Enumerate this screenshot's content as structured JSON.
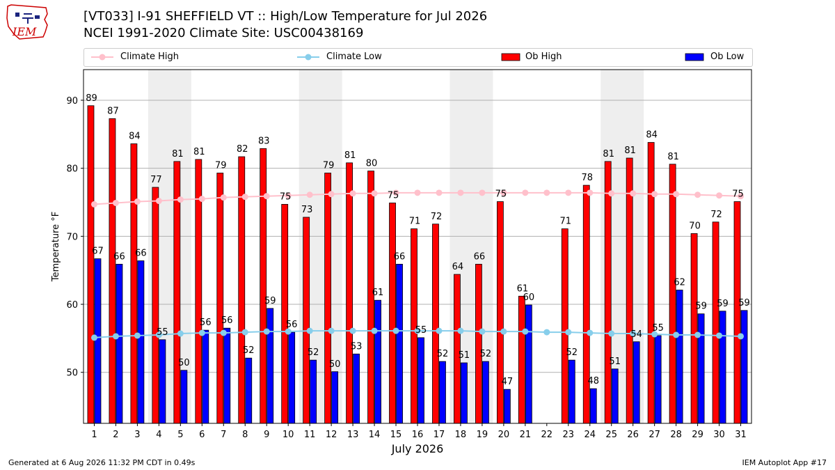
{
  "header": {
    "logo_text": "IEM",
    "title_line1": "[VT033] I-91 SHEFFIELD  VT :: High/Low Temperature for Jul 2026",
    "title_line2": "NCEI 1991-2020 Climate Site: USC00438169"
  },
  "legend": {
    "placement": "top, above plot, single row",
    "items": [
      {
        "label": "Climate High",
        "kind": "line-marker",
        "color": "#ffc0cb"
      },
      {
        "label": "Climate Low",
        "kind": "line-marker",
        "color": "#87ceeb"
      },
      {
        "label": "Ob High",
        "kind": "bar",
        "color": "#ff0000"
      },
      {
        "label": "Ob Low",
        "kind": "bar",
        "color": "#0000ff"
      }
    ]
  },
  "chart_data": {
    "type": "bar",
    "title": "[VT033] I-91 SHEFFIELD  VT :: High/Low Temperature for Jul 2026",
    "subtitle": "NCEI 1991-2020 Climate Site: USC00438169",
    "xlabel": "July 2026",
    "ylabel": "Temperature °F",
    "ylim": [
      42.5,
      94.5
    ],
    "yticks": [
      50,
      60,
      70,
      80,
      90
    ],
    "grid": "horizontal",
    "weekend_shading": [
      [
        4,
        5
      ],
      [
        11,
        12
      ],
      [
        18,
        19
      ],
      [
        25,
        26
      ]
    ],
    "categories": [
      "1",
      "2",
      "3",
      "4",
      "5",
      "6",
      "7",
      "8",
      "9",
      "10",
      "11",
      "12",
      "13",
      "14",
      "15",
      "16",
      "17",
      "18",
      "19",
      "20",
      "21",
      "22",
      "23",
      "24",
      "25",
      "26",
      "27",
      "28",
      "29",
      "30",
      "31"
    ],
    "series": [
      {
        "name": "Ob High",
        "type": "bar",
        "color": "#ff0000",
        "values": [
          89.2,
          87.3,
          83.6,
          77.2,
          81.0,
          81.3,
          79.3,
          81.7,
          82.9,
          74.7,
          72.8,
          79.3,
          80.8,
          79.6,
          74.9,
          71.1,
          71.8,
          64.4,
          65.9,
          75.1,
          61.2,
          null,
          71.1,
          77.5,
          81.0,
          81.5,
          83.8,
          80.6,
          70.4,
          72.1,
          75.1
        ],
        "labels": [
          "89",
          "87",
          "84",
          "77",
          "81",
          "81",
          "79",
          "82",
          "83",
          "75",
          "73",
          "79",
          "81",
          "80",
          "75",
          "71",
          "72",
          "64",
          "66",
          "75",
          "61",
          "",
          "71",
          "78",
          "81",
          "81",
          "84",
          "81",
          "70",
          "72",
          "75"
        ]
      },
      {
        "name": "Ob Low",
        "type": "bar",
        "color": "#0000ff",
        "values": [
          66.7,
          65.9,
          66.4,
          54.8,
          50.3,
          56.2,
          56.5,
          52.1,
          59.4,
          55.9,
          51.8,
          50.1,
          52.7,
          60.6,
          65.9,
          55.1,
          51.6,
          51.4,
          51.6,
          47.5,
          59.9,
          null,
          51.8,
          47.6,
          50.5,
          54.5,
          55.4,
          62.1,
          58.6,
          59.0,
          59.1
        ],
        "labels": [
          "67",
          "66",
          "66",
          "55",
          "50",
          "56",
          "56",
          "52",
          "59",
          "56",
          "52",
          "50",
          "53",
          "61",
          "66",
          "55",
          "52",
          "51",
          "52",
          "47",
          "60",
          "",
          "52",
          "48",
          "51",
          "54",
          "55",
          "62",
          "59",
          "59",
          "59"
        ]
      },
      {
        "name": "Climate High",
        "type": "line",
        "color": "#ffc0cb",
        "values": [
          74.7,
          74.9,
          75.1,
          75.2,
          75.4,
          75.5,
          75.7,
          75.8,
          75.9,
          76.0,
          76.1,
          76.2,
          76.3,
          76.3,
          76.4,
          76.4,
          76.4,
          76.4,
          76.4,
          76.4,
          76.4,
          76.4,
          76.4,
          76.4,
          76.3,
          76.3,
          76.2,
          76.2,
          76.1,
          76.0,
          75.9
        ]
      },
      {
        "name": "Climate Low",
        "type": "line",
        "color": "#87ceeb",
        "values": [
          55.1,
          55.3,
          55.4,
          55.5,
          55.7,
          55.8,
          55.8,
          55.9,
          56.0,
          56.0,
          56.1,
          56.1,
          56.1,
          56.1,
          56.1,
          56.1,
          56.1,
          56.1,
          56.0,
          56.0,
          56.0,
          55.9,
          55.9,
          55.8,
          55.7,
          55.7,
          55.6,
          55.5,
          55.5,
          55.4,
          55.3
        ]
      }
    ]
  },
  "footer": {
    "left": "Generated at 6 Aug 2026 11:32 PM CDT in 0.49s",
    "right": "IEM Autoplot App #17"
  }
}
